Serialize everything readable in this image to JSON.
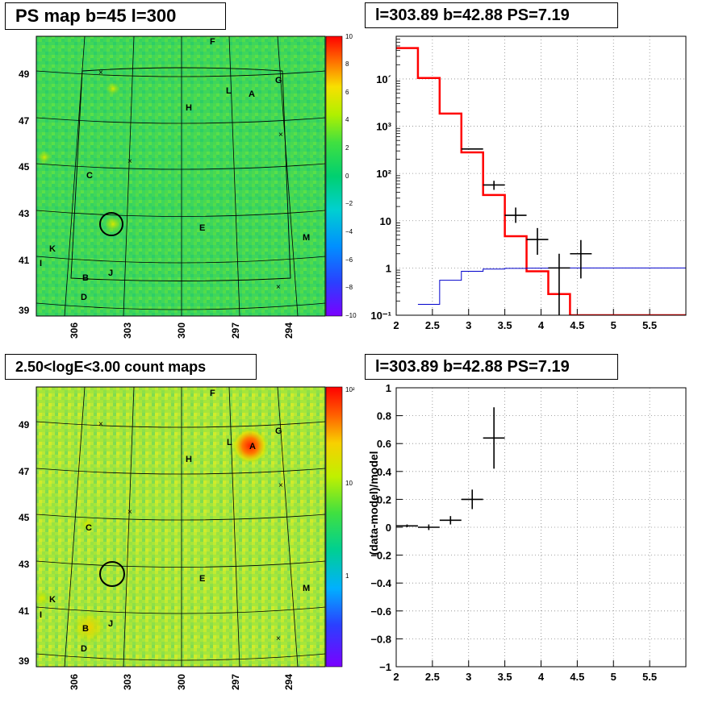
{
  "panels": {
    "tl_title": "PS map b=45 l=300",
    "tr_title": "l=303.89 b=42.88 PS=7.19",
    "bl_title": "2.50<logE<3.00 count maps",
    "br_title": "l=303.89 b=42.88 PS=7.19"
  },
  "colors": {
    "red": "#ff0000",
    "blue": "#0000cc",
    "black": "#000000"
  },
  "chart_data": [
    {
      "type": "heatmap",
      "title": "PS map b=45 l=300",
      "y_ticks": [
        "49",
        "47",
        "45",
        "43",
        "41",
        "39"
      ],
      "x_ticks": [
        "306",
        "303",
        "300",
        "297",
        "294"
      ],
      "colorbar": {
        "min": -10,
        "max": 10,
        "ticks": [
          "10",
          "8",
          "6",
          "4",
          "2",
          "0",
          "−2",
          "−4",
          "−6",
          "−8",
          "−10"
        ]
      },
      "source_labels": [
        "F",
        "L",
        "A",
        "G",
        "H",
        "C",
        "E",
        "K",
        "M",
        "I",
        "J",
        "B",
        "D"
      ],
      "circle_marker": {
        "l": 303.89,
        "b": 42.88
      }
    },
    {
      "type": "line",
      "title": "l=303.89 b=42.88 PS=7.19",
      "xlim": [
        2,
        6
      ],
      "ylim": [
        0.1,
        80000
      ],
      "log_y": true,
      "grid": true,
      "x_ticks": [
        "2",
        "2.5",
        "3",
        "3.5",
        "4",
        "4.5",
        "5",
        "5.5"
      ],
      "y_ticks": [
        "10´",
        "10³",
        "10²",
        "10",
        "1",
        "10⁻¹"
      ],
      "series": [
        {
          "style": "red-step",
          "edges": [
            2.0,
            2.3,
            2.6,
            2.9,
            3.2,
            3.5,
            3.8,
            4.1,
            4.4,
            6.0
          ],
          "values": [
            45000,
            10500,
            1850,
            280,
            35,
            4.7,
            0.85,
            0.28,
            0.1
          ]
        },
        {
          "style": "blue-step",
          "edges": [
            2.3,
            2.6,
            2.9,
            3.2,
            3.5,
            3.8,
            4.1,
            4.4,
            6.0
          ],
          "values": [
            0.17,
            0.55,
            0.85,
            0.95,
            0.98,
            0.99,
            1.0,
            1.0
          ]
        },
        {
          "style": "black-points",
          "points": [
            {
              "x": 3.05,
              "y": 330,
              "xerr": 0.15,
              "ylo": 330,
              "yhi": 330
            },
            {
              "x": 3.35,
              "y": 57,
              "xerr": 0.15,
              "ylo": 45,
              "yhi": 70
            },
            {
              "x": 3.65,
              "y": 13,
              "xerr": 0.15,
              "ylo": 9,
              "yhi": 19
            },
            {
              "x": 3.95,
              "y": 4,
              "xerr": 0.15,
              "ylo": 1.9,
              "yhi": 7
            },
            {
              "x": 4.25,
              "y": 1.0,
              "xerr": 0.15,
              "ylo": 0.1,
              "yhi": 2.0
            },
            {
              "x": 4.55,
              "y": 2.0,
              "xerr": 0.15,
              "ylo": 0.6,
              "yhi": 3.9
            }
          ]
        }
      ]
    },
    {
      "type": "heatmap",
      "title": "2.50<logE<3.00 count maps",
      "y_ticks": [
        "49",
        "47",
        "45",
        "43",
        "41",
        "39"
      ],
      "x_ticks": [
        "306",
        "303",
        "300",
        "297",
        "294"
      ],
      "colorbar": {
        "log": true,
        "ticks": [
          "10²",
          "10",
          "1"
        ]
      },
      "source_labels": [
        "F",
        "L",
        "A",
        "G",
        "H",
        "C",
        "E",
        "K",
        "M",
        "I",
        "J",
        "B",
        "D"
      ],
      "circle_marker": {
        "l": 303.89,
        "b": 42.88
      }
    },
    {
      "type": "scatter",
      "title": "l=303.89 b=42.88 PS=7.19",
      "ylabel": "(data-model)/model",
      "xlim": [
        2,
        6
      ],
      "ylim": [
        -1,
        1
      ],
      "grid": true,
      "x_ticks": [
        "2",
        "2.5",
        "3",
        "3.5",
        "4",
        "4.5",
        "5",
        "5.5"
      ],
      "y_ticks": [
        "1",
        "0.8",
        "0.6",
        "0.4",
        "0.2",
        "0",
        "−0.2",
        "−0.4",
        "−0.6",
        "−0.8",
        "−1"
      ],
      "points": [
        {
          "x": 2.15,
          "y": 0.01,
          "xerr": 0.15,
          "yerr": 0.01
        },
        {
          "x": 2.45,
          "y": 0.0,
          "xerr": 0.15,
          "yerr": 0.02
        },
        {
          "x": 2.75,
          "y": 0.05,
          "xerr": 0.15,
          "yerr": 0.03
        },
        {
          "x": 3.05,
          "y": 0.2,
          "xerr": 0.15,
          "yerr": 0.07
        },
        {
          "x": 3.35,
          "y": 0.64,
          "xerr": 0.15,
          "yerr": 0.22
        }
      ]
    }
  ]
}
